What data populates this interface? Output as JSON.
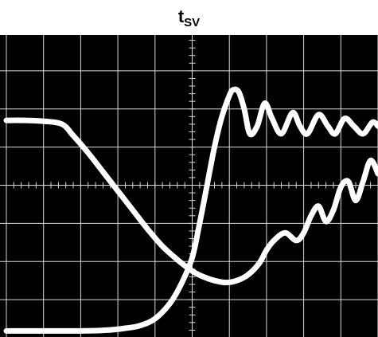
{
  "title": {
    "main": "t",
    "subscript": "SV"
  },
  "colors": {
    "background": "#000000",
    "grid": "#d9d9d9",
    "trace": "#ffffff"
  },
  "chart_data": {
    "type": "line",
    "title": "tSV",
    "xlabel": "",
    "ylabel": "",
    "xlim": [
      0,
      10
    ],
    "ylim": [
      0,
      8
    ],
    "grid": true,
    "divisions": {
      "x": 10,
      "y": 8
    },
    "minor_ticks_per_division": 5,
    "series": [
      {
        "x": [
          0,
          0.5,
          1.0,
          1.5,
          1.8,
          2.2,
          2.6,
          3.0,
          3.4,
          3.8,
          4.2,
          4.6,
          5.0,
          5.3,
          5.6,
          5.9,
          6.2,
          6.5,
          6.8,
          7.0,
          7.2,
          7.5,
          7.8,
          8.0,
          8.2,
          8.4,
          8.6,
          8.8,
          9.0,
          9.2,
          9.4,
          9.6,
          9.8,
          10.0
        ],
        "y": [
          5.7,
          5.7,
          5.68,
          5.6,
          5.3,
          4.85,
          4.35,
          3.85,
          3.35,
          2.85,
          2.4,
          2.05,
          1.75,
          1.6,
          1.5,
          1.45,
          1.5,
          1.65,
          1.95,
          2.3,
          2.55,
          2.75,
          2.55,
          2.75,
          3.2,
          3.45,
          3.05,
          3.35,
          3.95,
          4.1,
          3.6,
          4.1,
          4.65,
          4.3
        ]
      },
      {
        "x": [
          0,
          1.0,
          2.0,
          2.7,
          3.2,
          3.6,
          4.0,
          4.4,
          4.7,
          5.0,
          5.2,
          5.4,
          5.6,
          5.8,
          6.0,
          6.1,
          6.25,
          6.4,
          6.55,
          6.75,
          6.95,
          7.15,
          7.4,
          7.7,
          7.9,
          8.1,
          8.4,
          8.65,
          8.85,
          9.1,
          9.35,
          9.6,
          9.85,
          10.0
        ],
        "y": [
          0.18,
          0.18,
          0.18,
          0.2,
          0.25,
          0.32,
          0.5,
          0.9,
          1.4,
          2.1,
          3.0,
          4.0,
          5.0,
          5.8,
          6.35,
          6.5,
          6.45,
          6.0,
          5.35,
          5.55,
          6.15,
          5.75,
          5.35,
          5.9,
          5.55,
          5.35,
          5.85,
          5.55,
          5.35,
          5.75,
          5.55,
          5.35,
          5.65,
          5.55
        ]
      }
    ]
  }
}
